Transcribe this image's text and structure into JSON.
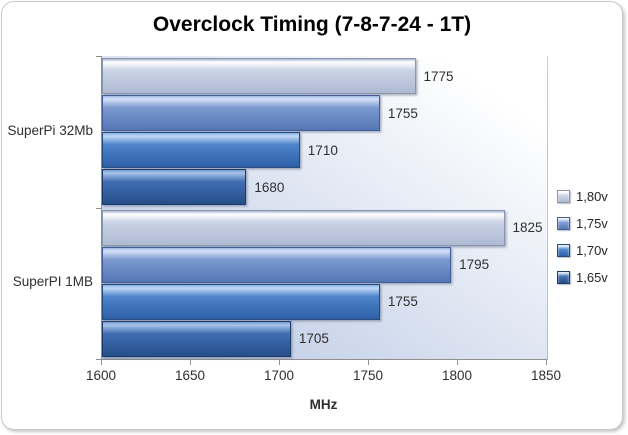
{
  "title": "Overclock Timing (7-8-7-24 - 1T)",
  "chart_data": {
    "type": "bar",
    "orientation": "horizontal",
    "title": "Overclock Timing (7-8-7-24 - 1T)",
    "categories": [
      "SuperPi 32Mb",
      "SuperPI 1MB"
    ],
    "series": [
      {
        "name": "1,80v",
        "values": [
          1775,
          1825
        ],
        "color": "#c9d3e5",
        "top": "#a9b7d3",
        "light": "#ffffff",
        "dark": "#aebad2",
        "border": "#8a95ab"
      },
      {
        "name": "1,75v",
        "values": [
          1755,
          1795
        ],
        "color": "#7c9ad2",
        "top": "#9fb9e4",
        "light": "#d3e1f6",
        "dark": "#5476b4",
        "border": "#41609b"
      },
      {
        "name": "1,70v",
        "values": [
          1710,
          1755
        ],
        "color": "#4f85cb",
        "top": "#86aee2",
        "light": "#bfd8f5",
        "dark": "#2e60a6",
        "border": "#23497f"
      },
      {
        "name": "1,65v",
        "values": [
          1680,
          1705
        ],
        "color": "#416fb2",
        "top": "#7699d2",
        "light": "#a8c3ea",
        "dark": "#264e8a",
        "border": "#1b3c6b"
      }
    ],
    "xlabel": "MHz",
    "xlim": [
      1600,
      1850
    ],
    "xticks": [
      1600,
      1650,
      1700,
      1750,
      1800,
      1850
    ],
    "legend_position": "right",
    "grid": false,
    "data_labels": true
  },
  "colors": {
    "axis": "#8f8f8f",
    "text": "#2f2f2f",
    "title_text": "#000000",
    "plot_bg_from": "#b5c4e2",
    "plot_bg_mid": "#dbe3f1",
    "plot_bg_to": "#ffffff",
    "frame_border": "#c9c9c9"
  }
}
